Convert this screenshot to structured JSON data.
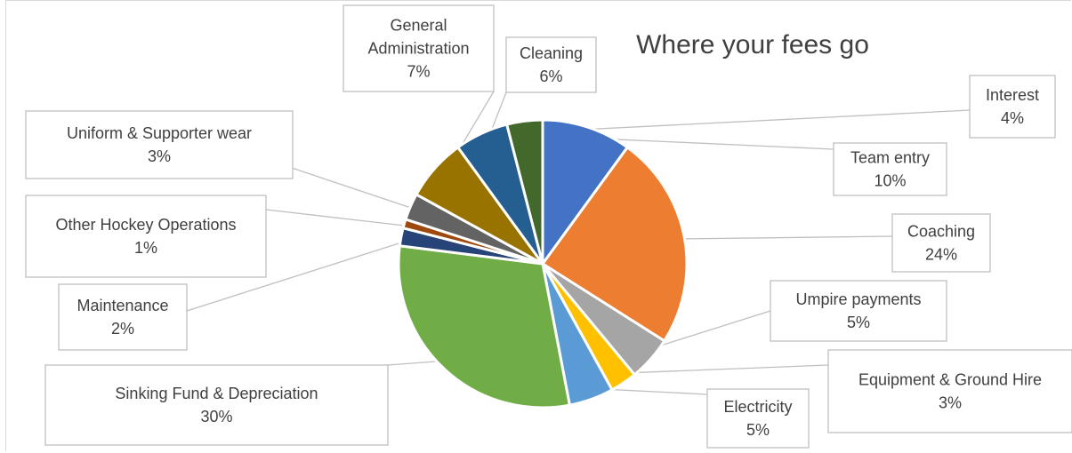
{
  "chart_data": {
    "type": "pie",
    "title": "Where your fees go",
    "slices": [
      {
        "name": "Team entry",
        "value": 10,
        "label": "10%",
        "color": "#4472C4"
      },
      {
        "name": "Coaching",
        "value": 24,
        "label": "24%",
        "color": "#ED7D31"
      },
      {
        "name": "Umpire payments",
        "value": 5,
        "label": "5%",
        "color": "#A5A5A5"
      },
      {
        "name": "Equipment & Ground Hire",
        "value": 3,
        "label": "3%",
        "color": "#FFC000"
      },
      {
        "name": "Electricity",
        "value": 5,
        "label": "5%",
        "color": "#5B9BD5"
      },
      {
        "name": "Sinking Fund & Depreciation",
        "value": 30,
        "label": "30%",
        "color": "#70AD47"
      },
      {
        "name": "Maintenance",
        "value": 2,
        "label": "2%",
        "color": "#264478"
      },
      {
        "name": "Other Hockey Operations",
        "value": 1,
        "label": "1%",
        "color": "#9E480E"
      },
      {
        "name": "Uniform & Supporter wear",
        "value": 3,
        "label": "3%",
        "color": "#636363"
      },
      {
        "name": "General Administration",
        "value": 7,
        "label": "7%",
        "color": "#997300"
      },
      {
        "name": "Cleaning",
        "value": 6,
        "label": "6%",
        "color": "#255E91"
      },
      {
        "name": "Interest",
        "value": 4,
        "label": "4%",
        "color": "#43682B"
      }
    ],
    "legend": "none"
  }
}
